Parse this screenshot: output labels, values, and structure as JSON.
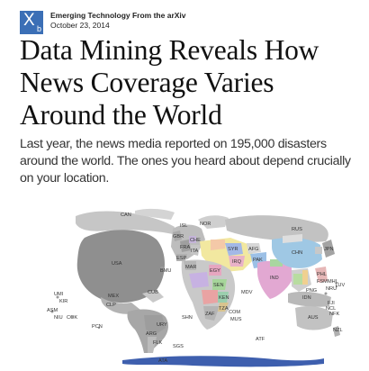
{
  "header": {
    "logo": {
      "letter": "X",
      "sub": "b"
    },
    "source": "Emerging Technology From the arXiv",
    "date": "October 23, 2014"
  },
  "article": {
    "title": "Data Mining Reveals How News Coverage Varies Around the World",
    "dek": "Last year, the news media reported on 195,000 disasters around the world. The ones you heard about depend crucially on your location."
  },
  "map": {
    "colors": {
      "usa": "#8f8f8f",
      "ocean": "#ffffff",
      "land": "#b9b9b9",
      "border": "#ffffff",
      "accent_blue": "#3e5fae"
    },
    "labels": {
      "can": "CAN",
      "usa": "USA",
      "mex": "MEX",
      "bmu": "BMU",
      "cub": "CUB",
      "clp": "CLP",
      "umi": "UMI",
      "kir": "KIR",
      "asm": "ASM",
      "niu": "NIU",
      "cok": "COK",
      "pcn": "PCN",
      "ury": "URY",
      "arg": "ARG",
      "flk": "FLK",
      "sgs": "SGS",
      "ata": "ATA",
      "atf": "ATF",
      "isl": "ISL",
      "nor": "NOR",
      "gbr": "GBR",
      "che": "CHE",
      "fra": "FRA",
      "ita": "ITA",
      "esp": "ESP",
      "mar": "MAR",
      "egy": "EGY",
      "syr": "SYR",
      "irq": "IRQ",
      "afg": "AFG",
      "pak": "PAK",
      "ind": "IND",
      "sen": "SEN",
      "ken": "KEN",
      "tza": "TZA",
      "zaf": "ZAF",
      "shn": "SHN",
      "com": "COM",
      "mus": "MUS",
      "mdv": "MDV",
      "chn": "CHN",
      "rus": "RUS",
      "jpn": "JPN",
      "phl": "PHL",
      "idn": "IDN",
      "aus": "AUS",
      "fji": "FJI",
      "nzl": "NZL",
      "tuv": "TUV",
      "nru": "NRU",
      "nfk": "NFK",
      "ncl": "NCL",
      "png": "PNG",
      "fsm": "FSM",
      "mhl": "MHL",
      "cpv": "CPV",
      "lbr": "LBR",
      "gha": "GHA",
      "cod": "COD",
      "lso": "LSO",
      "plw": "PLW",
      "gum": "GUM",
      "kor": "KOR",
      "twn": "TWN",
      "npl": "NPL",
      "lka": "LKA",
      "tha": "THA",
      "vnm": "VNM",
      "mys": "MYS",
      "sgp": "SGP",
      "tls": "TLS",
      "mmr": "MMR",
      "khm": "KHM",
      "lao": "LAO",
      "mng": "MNG",
      "kaz": "KAZ",
      "uzb": "UZB",
      "irn": "IRN",
      "sau": "SAU",
      "yem": "YEM",
      "omn": "OMN",
      "are": "ARE",
      "tur": "TUR",
      "grc": "GRC",
      "ukr": "UKR",
      "pol": "POL",
      "deu": "DEU",
      "bel": "BEL",
      "nld": "NLD",
      "irl": "IRL",
      "fin": "FIN",
      "swe": "SWE",
      "dnk": "DNK"
    }
  }
}
